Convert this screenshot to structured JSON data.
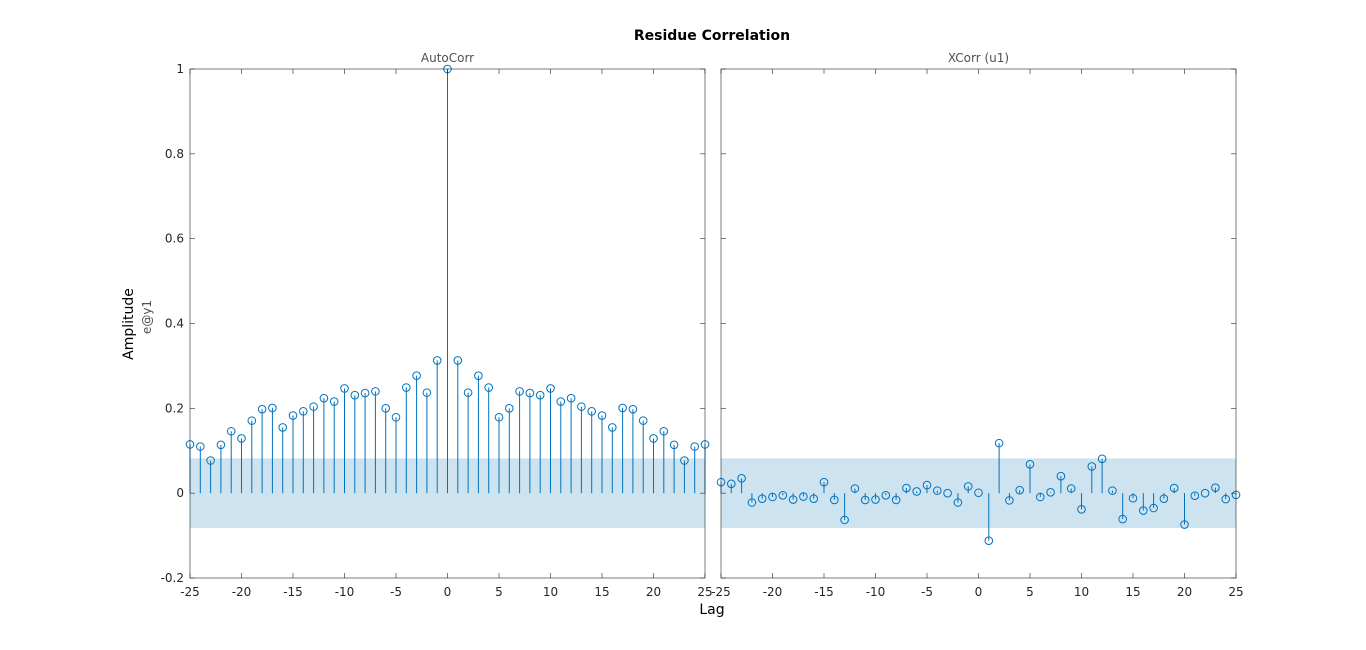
{
  "colors": {
    "stem": "#0072bd",
    "band": "#cde3f0",
    "axis": "#262626"
  },
  "chart_data": {
    "type": "stem",
    "title": "Residue Correlation",
    "xlabel": "Lag",
    "ylabel": "Amplitude",
    "ylabel_sub": "e@y1",
    "xlim": [
      -25,
      25
    ],
    "ylim": [
      -0.2,
      1
    ],
    "x_ticks": [
      "-25",
      "-20",
      "-15",
      "-10",
      "-5",
      "0",
      "5",
      "10",
      "15",
      "20",
      "25"
    ],
    "y_ticks": [
      "-0.2",
      "0",
      "0.2",
      "0.4",
      "0.6",
      "0.8",
      "1"
    ],
    "confidence_bound": 0.082,
    "panels": [
      {
        "title": "AutoCorr",
        "x": [
          -25,
          -24,
          -23,
          -22,
          -21,
          -20,
          -19,
          -18,
          -17,
          -16,
          -15,
          -14,
          -13,
          -12,
          -11,
          -10,
          -9,
          -8,
          -7,
          -6,
          -5,
          -4,
          -3,
          -2,
          -1,
          0,
          1,
          2,
          3,
          4,
          5,
          6,
          7,
          8,
          9,
          10,
          11,
          12,
          13,
          14,
          15,
          16,
          17,
          18,
          19,
          20,
          21,
          22,
          23,
          24,
          25
        ],
        "values": [
          0.115,
          0.11,
          0.077,
          0.114,
          0.146,
          0.129,
          0.171,
          0.198,
          0.201,
          0.155,
          0.183,
          0.193,
          0.204,
          0.224,
          0.216,
          0.247,
          0.231,
          0.236,
          0.24,
          0.2,
          0.179,
          0.249,
          0.277,
          0.237,
          0.313,
          1.0,
          0.313,
          0.237,
          0.277,
          0.249,
          0.179,
          0.2,
          0.24,
          0.236,
          0.231,
          0.247,
          0.216,
          0.224,
          0.204,
          0.193,
          0.183,
          0.155,
          0.201,
          0.198,
          0.171,
          0.129,
          0.146,
          0.114,
          0.077,
          0.11,
          0.115
        ]
      },
      {
        "title": "XCorr (u1)",
        "x": [
          -25,
          -24,
          -23,
          -22,
          -21,
          -20,
          -19,
          -18,
          -17,
          -16,
          -15,
          -14,
          -13,
          -12,
          -11,
          -10,
          -9,
          -8,
          -7,
          -6,
          -5,
          -4,
          -3,
          -2,
          -1,
          0,
          1,
          2,
          3,
          4,
          5,
          6,
          7,
          8,
          9,
          10,
          11,
          12,
          13,
          14,
          15,
          16,
          17,
          18,
          19,
          20,
          21,
          22,
          23,
          24,
          25
        ],
        "values": [
          0.026,
          0.022,
          0.035,
          -0.022,
          -0.013,
          -0.009,
          -0.005,
          -0.015,
          -0.008,
          -0.013,
          0.026,
          -0.016,
          -0.063,
          0.011,
          -0.016,
          -0.015,
          -0.005,
          -0.016,
          0.012,
          0.004,
          0.019,
          0.006,
          0.0,
          -0.022,
          0.016,
          0.001,
          -0.112,
          0.118,
          -0.017,
          0.007,
          0.068,
          -0.009,
          0.002,
          0.04,
          0.011,
          -0.038,
          0.063,
          0.081,
          0.006,
          -0.061,
          -0.012,
          -0.041,
          -0.035,
          -0.013,
          0.012,
          -0.074,
          -0.006,
          0.0,
          0.013,
          -0.014,
          -0.004
        ]
      }
    ]
  }
}
